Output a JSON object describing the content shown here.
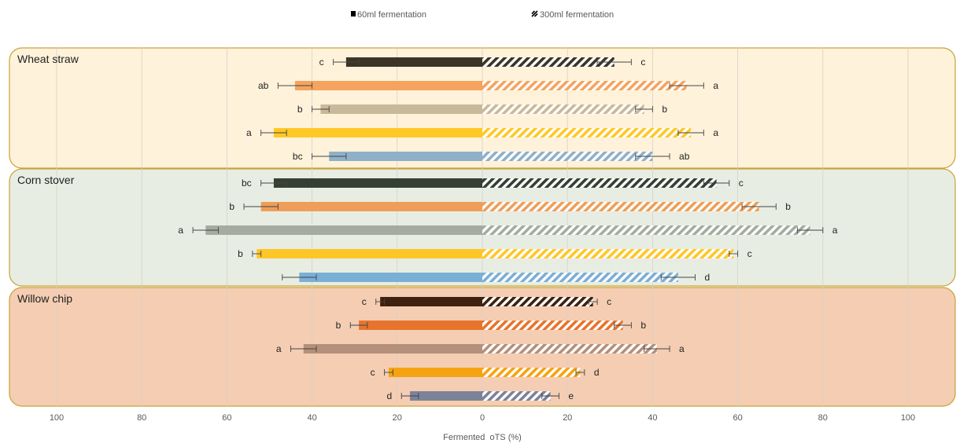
{
  "chart_data": {
    "type": "bar",
    "orientation": "horizontal-diverging",
    "xlabel": "Fermented  oTS (%)",
    "xlim": [
      -100,
      100
    ],
    "xticks": [
      "100",
      "80",
      "60",
      "40",
      "20",
      "0",
      "20",
      "40",
      "60",
      "80",
      "100"
    ],
    "grid": true,
    "legend_position": "top",
    "legend": [
      {
        "label": "60ml fermentation",
        "pattern": "solid",
        "side": "left"
      },
      {
        "label": "300ml fermentation",
        "pattern": "hatched",
        "side": "right"
      }
    ],
    "groups": [
      {
        "name": "Wheat straw",
        "panel_color": "#FFF2DA",
        "bars": [
          {
            "color": "#3B3427",
            "v60": 32,
            "err60": 3,
            "sig60": "c",
            "v300": 31,
            "err300": 4,
            "sig300": "c"
          },
          {
            "color": "#F4A45E",
            "v60": 44,
            "err60": 4,
            "sig60": "ab",
            "v300": 48,
            "err300": 4,
            "sig300": "a"
          },
          {
            "color": "#C8B99A",
            "v60": 38,
            "err60": 2,
            "sig60": "b",
            "v300": 38,
            "err300": 2,
            "sig300": "b"
          },
          {
            "color": "#FFC826",
            "v60": 49,
            "err60": 3,
            "sig60": "a",
            "v300": 49,
            "err300": 3,
            "sig300": "a"
          },
          {
            "color": "#8FB0C8",
            "v60": 36,
            "err60": 4,
            "sig60": "bc",
            "v300": 40,
            "err300": 4,
            "sig300": "ab"
          }
        ]
      },
      {
        "name": "Corn stover",
        "panel_color": "#E8EDE3",
        "bars": [
          {
            "color": "#354033",
            "v60": 49,
            "err60": 3,
            "sig60": "bc",
            "v300": 55,
            "err300": 3,
            "sig300": "c"
          },
          {
            "color": "#EE9E58",
            "v60": 52,
            "err60": 4,
            "sig60": "b",
            "v300": 65,
            "err300": 4,
            "sig300": "b"
          },
          {
            "color": "#A6ABA0",
            "v60": 65,
            "err60": 3,
            "sig60": "a",
            "v300": 77,
            "err300": 3,
            "sig300": "a"
          },
          {
            "color": "#FFC627",
            "v60": 53,
            "err60": 1,
            "sig60": "b",
            "v300": 59,
            "err300": 1,
            "sig300": "c"
          },
          {
            "color": "#7AAFD6",
            "v60": 43,
            "err60": 4,
            "sig60": "",
            "v300": 46,
            "err300": 4,
            "sig300": "d"
          }
        ]
      },
      {
        "name": "Willow chip",
        "panel_color": "#F4CDB3",
        "bars": [
          {
            "color": "#3E210F",
            "v60": 24,
            "err60": 1,
            "sig60": "c",
            "v300": 26,
            "err300": 1,
            "sig300": "c"
          },
          {
            "color": "#E6742C",
            "v60": 29,
            "err60": 2,
            "sig60": "b",
            "v300": 33,
            "err300": 2,
            "sig300": "b"
          },
          {
            "color": "#B4907A",
            "v60": 42,
            "err60": 3,
            "sig60": "a",
            "v300": 41,
            "err300": 3,
            "sig300": "a"
          },
          {
            "color": "#F6A312",
            "v60": 22,
            "err60": 1,
            "sig60": "c",
            "v300": 23,
            "err300": 1,
            "sig300": "d"
          },
          {
            "color": "#7C8298",
            "v60": 17,
            "err60": 2,
            "sig60": "d",
            "v300": 16,
            "err300": 2,
            "sig300": "e"
          }
        ]
      }
    ]
  }
}
